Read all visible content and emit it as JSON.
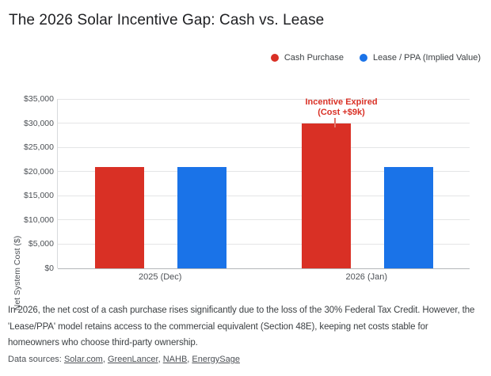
{
  "title": "The 2026 Solar Incentive Gap: Cash vs. Lease",
  "legend": {
    "items": [
      {
        "label": "Cash Purchase",
        "color": "#d93025"
      },
      {
        "label": "Lease / PPA (Implied Value)",
        "color": "#1a73e8"
      }
    ]
  },
  "chart_data": {
    "type": "bar",
    "title": "The 2026 Solar Incentive Gap: Cash vs. Lease",
    "categories": [
      "2025 (Dec)",
      "2026 (Jan)"
    ],
    "series": [
      {
        "name": "Cash Purchase",
        "color": "#d93025",
        "values": [
          21000,
          30000
        ]
      },
      {
        "name": "Lease / PPA (Implied Value)",
        "color": "#1a73e8",
        "values": [
          21000,
          21000
        ]
      }
    ],
    "xlabel": "",
    "ylabel": "Net System Cost ($)",
    "ylim": [
      0,
      35000
    ],
    "ytick_step": 5000,
    "ytick_labels": [
      "$0",
      "$5,000",
      "$10,000",
      "$15,000",
      "$20,000",
      "$25,000",
      "$30,000",
      "$35,000"
    ],
    "grid": true,
    "legend_position": "top-right",
    "annotation": {
      "text_line1": "Incentive Expired",
      "text_line2": "(Cost +$9k)",
      "color": "#d93025",
      "connector_color": "#e2766c",
      "series": "Cash Purchase",
      "category": "2026 (Jan)"
    }
  },
  "note": "In 2026, the net cost of a cash purchase rises significantly due to the loss of the 30% Federal Tax Credit. However, the\n'Lease/PPA' model retains access to the commercial equivalent (Section 48E), keeping net costs stable for\nhomeowners who choose third-party ownership.",
  "sources": {
    "prefix": "Data sources:",
    "separator": ", ",
    "links": [
      "Solar.com",
      "GreenLancer",
      "NAHB",
      "EnergySage"
    ]
  }
}
